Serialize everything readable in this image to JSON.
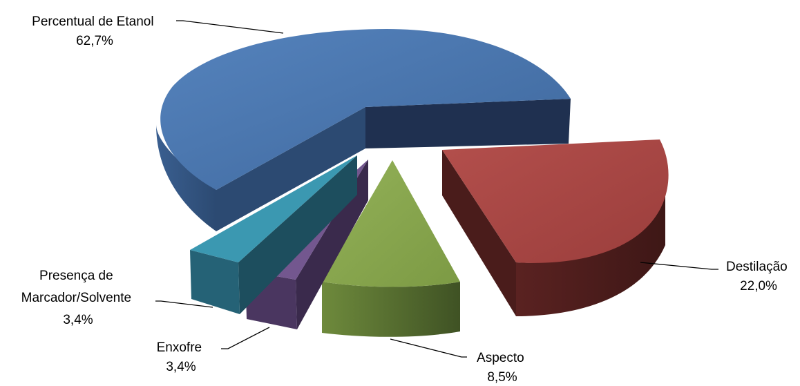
{
  "chart_data": {
    "type": "pie",
    "style": "3d-exploded",
    "slices": [
      {
        "label_lines": [
          "Percentual de Etanol"
        ],
        "value_text": "62,7%",
        "value": 62.7,
        "color": "#4470a8",
        "side_color": "#2c4a72",
        "face_color": "#1f3050"
      },
      {
        "label_lines": [
          "Destilação"
        ],
        "value_text": "22,0%",
        "value": 22.0,
        "color": "#a84543",
        "side_color": "#6e2a28",
        "face_color": "#4a1c1b"
      },
      {
        "label_lines": [
          "Aspecto"
        ],
        "value_text": "8,5%",
        "value": 8.5,
        "color": "#8aa84e",
        "side_color": "#5a7032",
        "face_color": "#3f5224"
      },
      {
        "label_lines": [
          "Enxofre"
        ],
        "value_text": "3,4%",
        "value": 3.4,
        "color": "#73578f",
        "side_color": "#4a3660",
        "face_color": "#3a2a4c"
      },
      {
        "label_lines": [
          "Presença de",
          "Marcador/Solvente"
        ],
        "value_text": "3,4%",
        "value": 3.4,
        "color": "#3b98b1",
        "side_color": "#256276",
        "face_color": "#1d4e5e"
      }
    ]
  }
}
